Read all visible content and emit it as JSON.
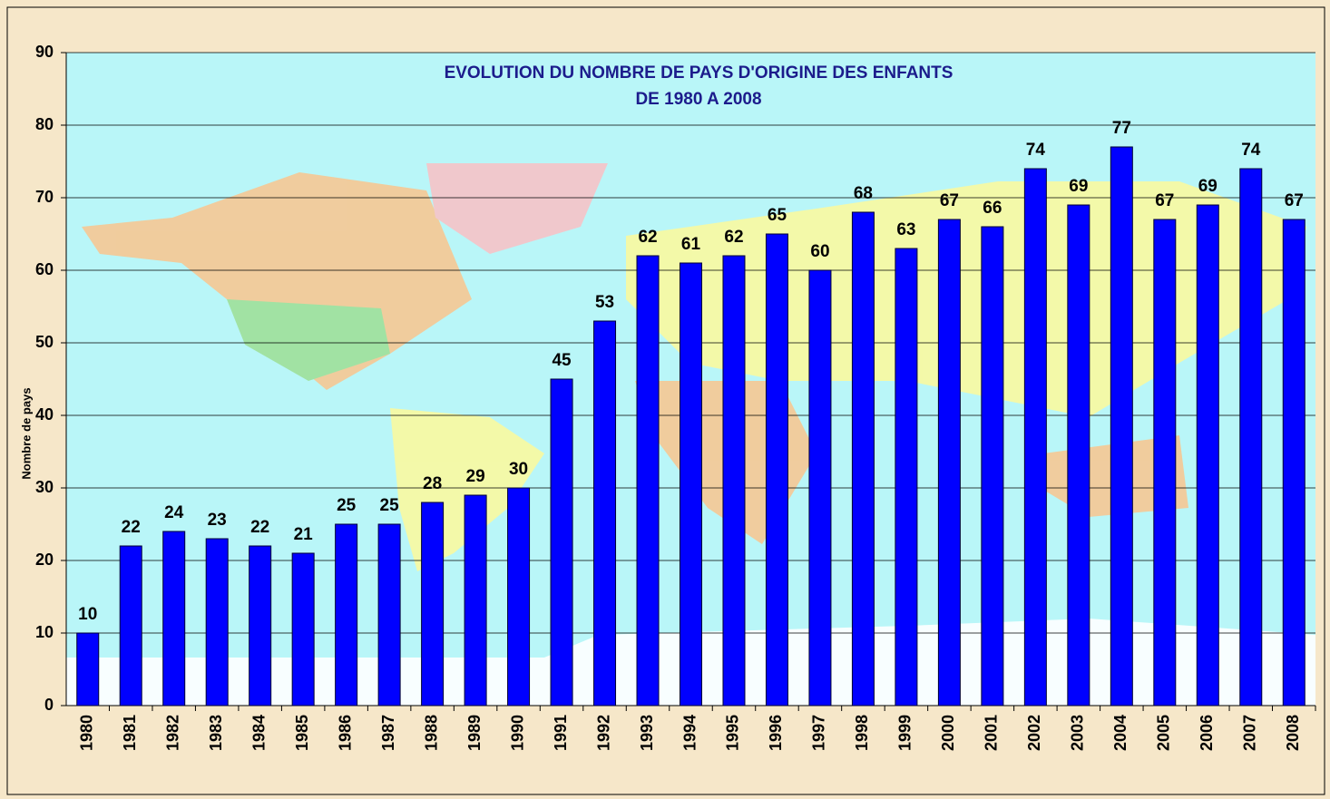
{
  "chart_data": {
    "type": "bar",
    "title": "EVOLUTION DU NOMBRE DE PAYS D'ORIGINE DES ENFANTS",
    "subtitle": "DE 1980 A 2008",
    "y_label": "Nombre de pays",
    "categories": [
      "1980",
      "1981",
      "1982",
      "1983",
      "1984",
      "1985",
      "1986",
      "1987",
      "1988",
      "1989",
      "1990",
      "1991",
      "1992",
      "1993",
      "1994",
      "1995",
      "1996",
      "1997",
      "1998",
      "1999",
      "2000",
      "2001",
      "2002",
      "2003",
      "2004",
      "2005",
      "2006",
      "2007",
      "2008"
    ],
    "values": [
      10,
      22,
      24,
      23,
      22,
      21,
      25,
      25,
      28,
      29,
      30,
      45,
      53,
      62,
      61,
      62,
      65,
      60,
      68,
      63,
      67,
      66,
      74,
      69,
      77,
      67,
      69,
      74,
      67
    ],
    "color": "#0000ff",
    "ylim": [
      0,
      90
    ],
    "yticks": [
      0,
      10,
      20,
      30,
      40,
      50,
      60,
      70,
      80,
      90
    ],
    "grid": true
  }
}
